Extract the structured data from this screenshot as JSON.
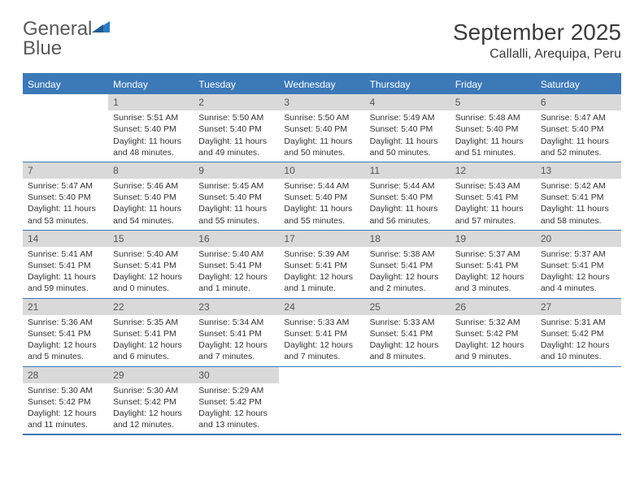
{
  "logo": {
    "text1": "General",
    "text2": "Blue"
  },
  "title": "September 2025",
  "location": "Callalli, Arequipa, Peru",
  "colors": {
    "header_bg": "#3b79b7",
    "header_text": "#ffffff",
    "daynum_bg": "#d9d9d9",
    "border": "#3b79b7",
    "logo_gray": "#58595b",
    "logo_blue": "#2e7cc0"
  },
  "dayHeaders": [
    "Sunday",
    "Monday",
    "Tuesday",
    "Wednesday",
    "Thursday",
    "Friday",
    "Saturday"
  ],
  "weeks": [
    [
      {
        "n": "",
        "sr": "",
        "ss": "",
        "dl": ""
      },
      {
        "n": "1",
        "sr": "Sunrise: 5:51 AM",
        "ss": "Sunset: 5:40 PM",
        "dl": "Daylight: 11 hours and 48 minutes."
      },
      {
        "n": "2",
        "sr": "Sunrise: 5:50 AM",
        "ss": "Sunset: 5:40 PM",
        "dl": "Daylight: 11 hours and 49 minutes."
      },
      {
        "n": "3",
        "sr": "Sunrise: 5:50 AM",
        "ss": "Sunset: 5:40 PM",
        "dl": "Daylight: 11 hours and 50 minutes."
      },
      {
        "n": "4",
        "sr": "Sunrise: 5:49 AM",
        "ss": "Sunset: 5:40 PM",
        "dl": "Daylight: 11 hours and 50 minutes."
      },
      {
        "n": "5",
        "sr": "Sunrise: 5:48 AM",
        "ss": "Sunset: 5:40 PM",
        "dl": "Daylight: 11 hours and 51 minutes."
      },
      {
        "n": "6",
        "sr": "Sunrise: 5:47 AM",
        "ss": "Sunset: 5:40 PM",
        "dl": "Daylight: 11 hours and 52 minutes."
      }
    ],
    [
      {
        "n": "7",
        "sr": "Sunrise: 5:47 AM",
        "ss": "Sunset: 5:40 PM",
        "dl": "Daylight: 11 hours and 53 minutes."
      },
      {
        "n": "8",
        "sr": "Sunrise: 5:46 AM",
        "ss": "Sunset: 5:40 PM",
        "dl": "Daylight: 11 hours and 54 minutes."
      },
      {
        "n": "9",
        "sr": "Sunrise: 5:45 AM",
        "ss": "Sunset: 5:40 PM",
        "dl": "Daylight: 11 hours and 55 minutes."
      },
      {
        "n": "10",
        "sr": "Sunrise: 5:44 AM",
        "ss": "Sunset: 5:40 PM",
        "dl": "Daylight: 11 hours and 55 minutes."
      },
      {
        "n": "11",
        "sr": "Sunrise: 5:44 AM",
        "ss": "Sunset: 5:40 PM",
        "dl": "Daylight: 11 hours and 56 minutes."
      },
      {
        "n": "12",
        "sr": "Sunrise: 5:43 AM",
        "ss": "Sunset: 5:41 PM",
        "dl": "Daylight: 11 hours and 57 minutes."
      },
      {
        "n": "13",
        "sr": "Sunrise: 5:42 AM",
        "ss": "Sunset: 5:41 PM",
        "dl": "Daylight: 11 hours and 58 minutes."
      }
    ],
    [
      {
        "n": "14",
        "sr": "Sunrise: 5:41 AM",
        "ss": "Sunset: 5:41 PM",
        "dl": "Daylight: 11 hours and 59 minutes."
      },
      {
        "n": "15",
        "sr": "Sunrise: 5:40 AM",
        "ss": "Sunset: 5:41 PM",
        "dl": "Daylight: 12 hours and 0 minutes."
      },
      {
        "n": "16",
        "sr": "Sunrise: 5:40 AM",
        "ss": "Sunset: 5:41 PM",
        "dl": "Daylight: 12 hours and 1 minute."
      },
      {
        "n": "17",
        "sr": "Sunrise: 5:39 AM",
        "ss": "Sunset: 5:41 PM",
        "dl": "Daylight: 12 hours and 1 minute."
      },
      {
        "n": "18",
        "sr": "Sunrise: 5:38 AM",
        "ss": "Sunset: 5:41 PM",
        "dl": "Daylight: 12 hours and 2 minutes."
      },
      {
        "n": "19",
        "sr": "Sunrise: 5:37 AM",
        "ss": "Sunset: 5:41 PM",
        "dl": "Daylight: 12 hours and 3 minutes."
      },
      {
        "n": "20",
        "sr": "Sunrise: 5:37 AM",
        "ss": "Sunset: 5:41 PM",
        "dl": "Daylight: 12 hours and 4 minutes."
      }
    ],
    [
      {
        "n": "21",
        "sr": "Sunrise: 5:36 AM",
        "ss": "Sunset: 5:41 PM",
        "dl": "Daylight: 12 hours and 5 minutes."
      },
      {
        "n": "22",
        "sr": "Sunrise: 5:35 AM",
        "ss": "Sunset: 5:41 PM",
        "dl": "Daylight: 12 hours and 6 minutes."
      },
      {
        "n": "23",
        "sr": "Sunrise: 5:34 AM",
        "ss": "Sunset: 5:41 PM",
        "dl": "Daylight: 12 hours and 7 minutes."
      },
      {
        "n": "24",
        "sr": "Sunrise: 5:33 AM",
        "ss": "Sunset: 5:41 PM",
        "dl": "Daylight: 12 hours and 7 minutes."
      },
      {
        "n": "25",
        "sr": "Sunrise: 5:33 AM",
        "ss": "Sunset: 5:41 PM",
        "dl": "Daylight: 12 hours and 8 minutes."
      },
      {
        "n": "26",
        "sr": "Sunrise: 5:32 AM",
        "ss": "Sunset: 5:42 PM",
        "dl": "Daylight: 12 hours and 9 minutes."
      },
      {
        "n": "27",
        "sr": "Sunrise: 5:31 AM",
        "ss": "Sunset: 5:42 PM",
        "dl": "Daylight: 12 hours and 10 minutes."
      }
    ],
    [
      {
        "n": "28",
        "sr": "Sunrise: 5:30 AM",
        "ss": "Sunset: 5:42 PM",
        "dl": "Daylight: 12 hours and 11 minutes."
      },
      {
        "n": "29",
        "sr": "Sunrise: 5:30 AM",
        "ss": "Sunset: 5:42 PM",
        "dl": "Daylight: 12 hours and 12 minutes."
      },
      {
        "n": "30",
        "sr": "Sunrise: 5:29 AM",
        "ss": "Sunset: 5:42 PM",
        "dl": "Daylight: 12 hours and 13 minutes."
      },
      {
        "n": "",
        "sr": "",
        "ss": "",
        "dl": ""
      },
      {
        "n": "",
        "sr": "",
        "ss": "",
        "dl": ""
      },
      {
        "n": "",
        "sr": "",
        "ss": "",
        "dl": ""
      },
      {
        "n": "",
        "sr": "",
        "ss": "",
        "dl": ""
      }
    ]
  ]
}
